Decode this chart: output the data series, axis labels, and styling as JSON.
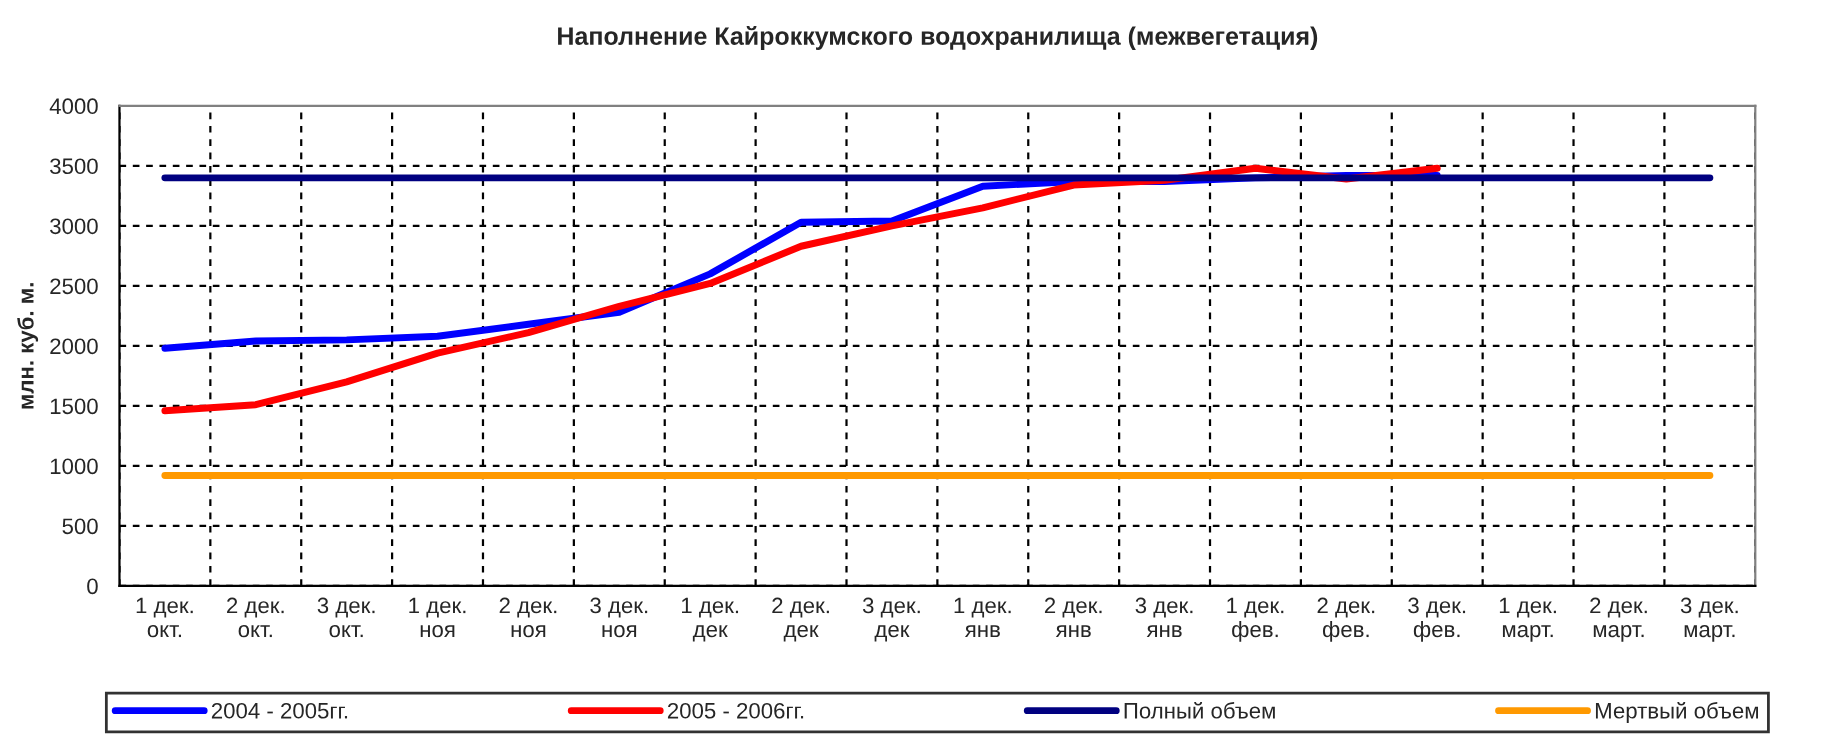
{
  "chart_data": {
    "type": "line",
    "title": "Наполнение Кайроккумского водохранилища (межвегетация)",
    "ylabel": "млн. куб. м.",
    "categories": [
      "1 дек.\nокт.",
      "2 дек.\nокт.",
      "3 дек.\nокт.",
      "1 дек.\nноя",
      "2 дек.\nноя",
      "3 дек.\nноя",
      "1 дек.\nдек",
      "2 дек.\nдек",
      "3 дек.\nдек",
      "1 дек.\nянв",
      "2 дек.\nянв",
      "3 дек.\nянв",
      "1 дек.\nфев.",
      "2 дек.\nфев.",
      "3 дек.\nфев.",
      "1 дек.\nмарт.",
      "2 дек.\nмарт.",
      "3 дек.\nмарт."
    ],
    "series": [
      {
        "name": "2004 - 2005гг.",
        "color": "#0000ff",
        "values": [
          1980,
          2040,
          2050,
          2080,
          2180,
          2280,
          2600,
          3030,
          3040,
          3330,
          3370,
          3370,
          3400,
          3420,
          3420,
          null,
          null,
          null
        ]
      },
      {
        "name": "2005 - 2006гг.",
        "color": "#ff0000",
        "values": [
          1460,
          1510,
          1700,
          1940,
          2110,
          2330,
          2520,
          2830,
          3000,
          3150,
          3340,
          3380,
          3480,
          3390,
          3480,
          null,
          null,
          null
        ]
      },
      {
        "name": "Полный объем",
        "color": "#000080",
        "values": [
          3400,
          3400,
          3400,
          3400,
          3400,
          3400,
          3400,
          3400,
          3400,
          3400,
          3400,
          3400,
          3400,
          3400,
          3400,
          3400,
          3400,
          3400
        ]
      },
      {
        "name": "Мертвый объем",
        "color": "#ff9900",
        "values": [
          920,
          920,
          920,
          920,
          920,
          920,
          920,
          920,
          920,
          920,
          920,
          920,
          920,
          920,
          920,
          920,
          920,
          920
        ]
      }
    ],
    "ylim": [
      0,
      4000
    ],
    "yticks": [
      0,
      500,
      1000,
      1500,
      2000,
      2500,
      3000,
      3500,
      4000
    ],
    "grid": true,
    "legend": "bottom",
    "line_style": "solid",
    "marker": "none"
  }
}
